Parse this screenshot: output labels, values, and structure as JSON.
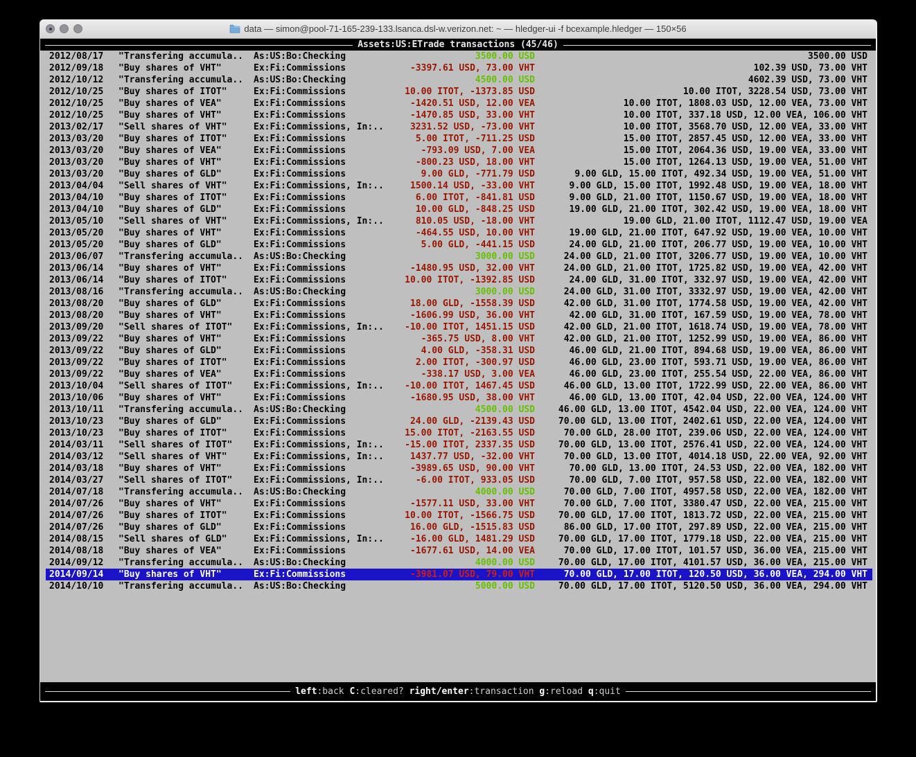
{
  "window": {
    "title": "data — simon@pool-71-165-239-133.lsanca.dsl-w.verizon.net: ~ — hledger-ui -f bcexample.hledger — 150×56",
    "folder_icon_color": "#74a9d8",
    "buttons": [
      "close",
      "minimize",
      "zoom"
    ]
  },
  "colors": {
    "terminal_bg": "#bfbfbf",
    "green": "#66c000",
    "red": "#991500",
    "selected_bg": "#1b13c8",
    "selected_red": "#cc2012"
  },
  "header": {
    "title_bold": "Assets:US:ETrade",
    "title_rest": " transactions (45/46)"
  },
  "footer": {
    "parts": [
      {
        "key": "left",
        "label": ":back"
      },
      {
        "key": "C",
        "label": ":cleared?"
      },
      {
        "key": "right/enter",
        "label": ":transaction"
      },
      {
        "key": "g",
        "label": ":reload"
      },
      {
        "key": "q",
        "label": ":quit"
      }
    ]
  },
  "register": {
    "columns": [
      "date",
      "description",
      "other accounts",
      "change",
      "balance"
    ],
    "rows": [
      {
        "date": "2012/08/17",
        "desc": "\"Transfering accumula..",
        "acct": "As:US:Bo:Checking",
        "amt": "3500.00 USD",
        "amt_color": "green",
        "bal": "3500.00 USD",
        "selected": false
      },
      {
        "date": "2012/09/18",
        "desc": "\"Buy shares of VHT\"",
        "acct": "Ex:Fi:Commissions",
        "amt": "-3397.61 USD, 73.00 VHT",
        "amt_color": "red",
        "bal": "102.39 USD, 73.00 VHT",
        "selected": false
      },
      {
        "date": "2012/10/12",
        "desc": "\"Transfering accumula..",
        "acct": "As:US:Bo:Checking",
        "amt": "4500.00 USD",
        "amt_color": "green",
        "bal": "4602.39 USD, 73.00 VHT",
        "selected": false
      },
      {
        "date": "2012/10/25",
        "desc": "\"Buy shares of ITOT\"",
        "acct": "Ex:Fi:Commissions",
        "amt": "10.00 ITOT, -1373.85 USD",
        "amt_color": "red",
        "bal": "10.00 ITOT, 3228.54 USD, 73.00 VHT",
        "selected": false
      },
      {
        "date": "2012/10/25",
        "desc": "\"Buy shares of VEA\"",
        "acct": "Ex:Fi:Commissions",
        "amt": "-1420.51 USD, 12.00 VEA",
        "amt_color": "red",
        "bal": "10.00 ITOT, 1808.03 USD, 12.00 VEA, 73.00 VHT",
        "selected": false
      },
      {
        "date": "2012/10/25",
        "desc": "\"Buy shares of VHT\"",
        "acct": "Ex:Fi:Commissions",
        "amt": "-1470.85 USD, 33.00 VHT",
        "amt_color": "red",
        "bal": "10.00 ITOT, 337.18 USD, 12.00 VEA, 106.00 VHT",
        "selected": false
      },
      {
        "date": "2013/02/17",
        "desc": "\"Sell shares of VHT\"",
        "acct": "Ex:Fi:Commissions, In:..",
        "amt": "3231.52 USD, -73.00 VHT",
        "amt_color": "red",
        "bal": "10.00 ITOT, 3568.70 USD, 12.00 VEA, 33.00 VHT",
        "selected": false
      },
      {
        "date": "2013/03/20",
        "desc": "\"Buy shares of ITOT\"",
        "acct": "Ex:Fi:Commissions",
        "amt": "5.00 ITOT, -711.25 USD",
        "amt_color": "red",
        "bal": "15.00 ITOT, 2857.45 USD, 12.00 VEA, 33.00 VHT",
        "selected": false
      },
      {
        "date": "2013/03/20",
        "desc": "\"Buy shares of VEA\"",
        "acct": "Ex:Fi:Commissions",
        "amt": "-793.09 USD, 7.00 VEA",
        "amt_color": "red",
        "bal": "15.00 ITOT, 2064.36 USD, 19.00 VEA, 33.00 VHT",
        "selected": false
      },
      {
        "date": "2013/03/20",
        "desc": "\"Buy shares of VHT\"",
        "acct": "Ex:Fi:Commissions",
        "amt": "-800.23 USD, 18.00 VHT",
        "amt_color": "red",
        "bal": "15.00 ITOT, 1264.13 USD, 19.00 VEA, 51.00 VHT",
        "selected": false
      },
      {
        "date": "2013/03/20",
        "desc": "\"Buy shares of GLD\"",
        "acct": "Ex:Fi:Commissions",
        "amt": "9.00 GLD, -771.79 USD",
        "amt_color": "red",
        "bal": "9.00 GLD, 15.00 ITOT, 492.34 USD, 19.00 VEA, 51.00 VHT",
        "selected": false
      },
      {
        "date": "2013/04/04",
        "desc": "\"Sell shares of VHT\"",
        "acct": "Ex:Fi:Commissions, In:..",
        "amt": "1500.14 USD, -33.00 VHT",
        "amt_color": "red",
        "bal": "9.00 GLD, 15.00 ITOT, 1992.48 USD, 19.00 VEA, 18.00 VHT",
        "selected": false
      },
      {
        "date": "2013/04/10",
        "desc": "\"Buy shares of ITOT\"",
        "acct": "Ex:Fi:Commissions",
        "amt": "6.00 ITOT, -841.81 USD",
        "amt_color": "red",
        "bal": "9.00 GLD, 21.00 ITOT, 1150.67 USD, 19.00 VEA, 18.00 VHT",
        "selected": false
      },
      {
        "date": "2013/04/10",
        "desc": "\"Buy shares of GLD\"",
        "acct": "Ex:Fi:Commissions",
        "amt": "10.00 GLD, -848.25 USD",
        "amt_color": "red",
        "bal": "19.00 GLD, 21.00 ITOT, 302.42 USD, 19.00 VEA, 18.00 VHT",
        "selected": false
      },
      {
        "date": "2013/05/10",
        "desc": "\"Sell shares of VHT\"",
        "acct": "Ex:Fi:Commissions, In:..",
        "amt": "810.05 USD, -18.00 VHT",
        "amt_color": "red",
        "bal": "19.00 GLD, 21.00 ITOT, 1112.47 USD, 19.00 VEA",
        "selected": false
      },
      {
        "date": "2013/05/20",
        "desc": "\"Buy shares of VHT\"",
        "acct": "Ex:Fi:Commissions",
        "amt": "-464.55 USD, 10.00 VHT",
        "amt_color": "red",
        "bal": "19.00 GLD, 21.00 ITOT, 647.92 USD, 19.00 VEA, 10.00 VHT",
        "selected": false
      },
      {
        "date": "2013/05/20",
        "desc": "\"Buy shares of GLD\"",
        "acct": "Ex:Fi:Commissions",
        "amt": "5.00 GLD, -441.15 USD",
        "amt_color": "red",
        "bal": "24.00 GLD, 21.00 ITOT, 206.77 USD, 19.00 VEA, 10.00 VHT",
        "selected": false
      },
      {
        "date": "2013/06/07",
        "desc": "\"Transfering accumula..",
        "acct": "As:US:Bo:Checking",
        "amt": "3000.00 USD",
        "amt_color": "green",
        "bal": "24.00 GLD, 21.00 ITOT, 3206.77 USD, 19.00 VEA, 10.00 VHT",
        "selected": false
      },
      {
        "date": "2013/06/14",
        "desc": "\"Buy shares of VHT\"",
        "acct": "Ex:Fi:Commissions",
        "amt": "-1480.95 USD, 32.00 VHT",
        "amt_color": "red",
        "bal": "24.00 GLD, 21.00 ITOT, 1725.82 USD, 19.00 VEA, 42.00 VHT",
        "selected": false
      },
      {
        "date": "2013/06/14",
        "desc": "\"Buy shares of ITOT\"",
        "acct": "Ex:Fi:Commissions",
        "amt": "10.00 ITOT, -1392.85 USD",
        "amt_color": "red",
        "bal": "24.00 GLD, 31.00 ITOT, 332.97 USD, 19.00 VEA, 42.00 VHT",
        "selected": false
      },
      {
        "date": "2013/08/16",
        "desc": "\"Transfering accumula..",
        "acct": "As:US:Bo:Checking",
        "amt": "3000.00 USD",
        "amt_color": "green",
        "bal": "24.00 GLD, 31.00 ITOT, 3332.97 USD, 19.00 VEA, 42.00 VHT",
        "selected": false
      },
      {
        "date": "2013/08/20",
        "desc": "\"Buy shares of GLD\"",
        "acct": "Ex:Fi:Commissions",
        "amt": "18.00 GLD, -1558.39 USD",
        "amt_color": "red",
        "bal": "42.00 GLD, 31.00 ITOT, 1774.58 USD, 19.00 VEA, 42.00 VHT",
        "selected": false
      },
      {
        "date": "2013/08/20",
        "desc": "\"Buy shares of VHT\"",
        "acct": "Ex:Fi:Commissions",
        "amt": "-1606.99 USD, 36.00 VHT",
        "amt_color": "red",
        "bal": "42.00 GLD, 31.00 ITOT, 167.59 USD, 19.00 VEA, 78.00 VHT",
        "selected": false
      },
      {
        "date": "2013/09/20",
        "desc": "\"Sell shares of ITOT\"",
        "acct": "Ex:Fi:Commissions, In:..",
        "amt": "-10.00 ITOT, 1451.15 USD",
        "amt_color": "red",
        "bal": "42.00 GLD, 21.00 ITOT, 1618.74 USD, 19.00 VEA, 78.00 VHT",
        "selected": false
      },
      {
        "date": "2013/09/22",
        "desc": "\"Buy shares of VHT\"",
        "acct": "Ex:Fi:Commissions",
        "amt": "-365.75 USD, 8.00 VHT",
        "amt_color": "red",
        "bal": "42.00 GLD, 21.00 ITOT, 1252.99 USD, 19.00 VEA, 86.00 VHT",
        "selected": false
      },
      {
        "date": "2013/09/22",
        "desc": "\"Buy shares of GLD\"",
        "acct": "Ex:Fi:Commissions",
        "amt": "4.00 GLD, -358.31 USD",
        "amt_color": "red",
        "bal": "46.00 GLD, 21.00 ITOT, 894.68 USD, 19.00 VEA, 86.00 VHT",
        "selected": false
      },
      {
        "date": "2013/09/22",
        "desc": "\"Buy shares of ITOT\"",
        "acct": "Ex:Fi:Commissions",
        "amt": "2.00 ITOT, -300.97 USD",
        "amt_color": "red",
        "bal": "46.00 GLD, 23.00 ITOT, 593.71 USD, 19.00 VEA, 86.00 VHT",
        "selected": false
      },
      {
        "date": "2013/09/22",
        "desc": "\"Buy shares of VEA\"",
        "acct": "Ex:Fi:Commissions",
        "amt": "-338.17 USD, 3.00 VEA",
        "amt_color": "red",
        "bal": "46.00 GLD, 23.00 ITOT, 255.54 USD, 22.00 VEA, 86.00 VHT",
        "selected": false
      },
      {
        "date": "2013/10/04",
        "desc": "\"Sell shares of ITOT\"",
        "acct": "Ex:Fi:Commissions, In:..",
        "amt": "-10.00 ITOT, 1467.45 USD",
        "amt_color": "red",
        "bal": "46.00 GLD, 13.00 ITOT, 1722.99 USD, 22.00 VEA, 86.00 VHT",
        "selected": false
      },
      {
        "date": "2013/10/06",
        "desc": "\"Buy shares of VHT\"",
        "acct": "Ex:Fi:Commissions",
        "amt": "-1680.95 USD, 38.00 VHT",
        "amt_color": "red",
        "bal": "46.00 GLD, 13.00 ITOT, 42.04 USD, 22.00 VEA, 124.00 VHT",
        "selected": false
      },
      {
        "date": "2013/10/11",
        "desc": "\"Transfering accumula..",
        "acct": "As:US:Bo:Checking",
        "amt": "4500.00 USD",
        "amt_color": "green",
        "bal": "46.00 GLD, 13.00 ITOT, 4542.04 USD, 22.00 VEA, 124.00 VHT",
        "selected": false
      },
      {
        "date": "2013/10/23",
        "desc": "\"Buy shares of GLD\"",
        "acct": "Ex:Fi:Commissions",
        "amt": "24.00 GLD, -2139.43 USD",
        "amt_color": "red",
        "bal": "70.00 GLD, 13.00 ITOT, 2402.61 USD, 22.00 VEA, 124.00 VHT",
        "selected": false
      },
      {
        "date": "2013/10/23",
        "desc": "\"Buy shares of ITOT\"",
        "acct": "Ex:Fi:Commissions",
        "amt": "15.00 ITOT, -2163.55 USD",
        "amt_color": "red",
        "bal": "70.00 GLD, 28.00 ITOT, 239.06 USD, 22.00 VEA, 124.00 VHT",
        "selected": false
      },
      {
        "date": "2014/03/11",
        "desc": "\"Sell shares of ITOT\"",
        "acct": "Ex:Fi:Commissions, In:..",
        "amt": "-15.00 ITOT, 2337.35 USD",
        "amt_color": "red",
        "bal": "70.00 GLD, 13.00 ITOT, 2576.41 USD, 22.00 VEA, 124.00 VHT",
        "selected": false
      },
      {
        "date": "2014/03/12",
        "desc": "\"Sell shares of VHT\"",
        "acct": "Ex:Fi:Commissions, In:..",
        "amt": "1437.77 USD, -32.00 VHT",
        "amt_color": "red",
        "bal": "70.00 GLD, 13.00 ITOT, 4014.18 USD, 22.00 VEA, 92.00 VHT",
        "selected": false
      },
      {
        "date": "2014/03/18",
        "desc": "\"Buy shares of VHT\"",
        "acct": "Ex:Fi:Commissions",
        "amt": "-3989.65 USD, 90.00 VHT",
        "amt_color": "red",
        "bal": "70.00 GLD, 13.00 ITOT, 24.53 USD, 22.00 VEA, 182.00 VHT",
        "selected": false
      },
      {
        "date": "2014/03/27",
        "desc": "\"Sell shares of ITOT\"",
        "acct": "Ex:Fi:Commissions, In:..",
        "amt": "-6.00 ITOT, 933.05 USD",
        "amt_color": "red",
        "bal": "70.00 GLD, 7.00 ITOT, 957.58 USD, 22.00 VEA, 182.00 VHT",
        "selected": false
      },
      {
        "date": "2014/07/18",
        "desc": "\"Transfering accumula..",
        "acct": "As:US:Bo:Checking",
        "amt": "4000.00 USD",
        "amt_color": "green",
        "bal": "70.00 GLD, 7.00 ITOT, 4957.58 USD, 22.00 VEA, 182.00 VHT",
        "selected": false
      },
      {
        "date": "2014/07/26",
        "desc": "\"Buy shares of VHT\"",
        "acct": "Ex:Fi:Commissions",
        "amt": "-1577.11 USD, 33.00 VHT",
        "amt_color": "red",
        "bal": "70.00 GLD, 7.00 ITOT, 3380.47 USD, 22.00 VEA, 215.00 VHT",
        "selected": false
      },
      {
        "date": "2014/07/26",
        "desc": "\"Buy shares of ITOT\"",
        "acct": "Ex:Fi:Commissions",
        "amt": "10.00 ITOT, -1566.75 USD",
        "amt_color": "red",
        "bal": "70.00 GLD, 17.00 ITOT, 1813.72 USD, 22.00 VEA, 215.00 VHT",
        "selected": false
      },
      {
        "date": "2014/07/26",
        "desc": "\"Buy shares of GLD\"",
        "acct": "Ex:Fi:Commissions",
        "amt": "16.00 GLD, -1515.83 USD",
        "amt_color": "red",
        "bal": "86.00 GLD, 17.00 ITOT, 297.89 USD, 22.00 VEA, 215.00 VHT",
        "selected": false
      },
      {
        "date": "2014/08/15",
        "desc": "\"Sell shares of GLD\"",
        "acct": "Ex:Fi:Commissions, In:..",
        "amt": "-16.00 GLD, 1481.29 USD",
        "amt_color": "red",
        "bal": "70.00 GLD, 17.00 ITOT, 1779.18 USD, 22.00 VEA, 215.00 VHT",
        "selected": false
      },
      {
        "date": "2014/08/18",
        "desc": "\"Buy shares of VEA\"",
        "acct": "Ex:Fi:Commissions",
        "amt": "-1677.61 USD, 14.00 VEA",
        "amt_color": "red",
        "bal": "70.00 GLD, 17.00 ITOT, 101.57 USD, 36.00 VEA, 215.00 VHT",
        "selected": false
      },
      {
        "date": "2014/09/12",
        "desc": "\"Transfering accumula..",
        "acct": "As:US:Bo:Checking",
        "amt": "4000.00 USD",
        "amt_color": "green",
        "bal": "70.00 GLD, 17.00 ITOT, 4101.57 USD, 36.00 VEA, 215.00 VHT",
        "selected": false
      },
      {
        "date": "2014/09/14",
        "desc": "\"Buy shares of VHT\"",
        "acct": "Ex:Fi:Commissions",
        "amt": "-3981.07 USD, 79.00 VHT",
        "amt_color": "red",
        "bal": "70.00 GLD, 17.00 ITOT, 120.50 USD, 36.00 VEA, 294.00 VHT",
        "selected": true
      },
      {
        "date": "2014/10/10",
        "desc": "\"Transfering accumula..",
        "acct": "As:US:Bo:Checking",
        "amt": "5000.00 USD",
        "amt_color": "green",
        "bal": "70.00 GLD, 17.00 ITOT, 5120.50 USD, 36.00 VEA, 294.00 VHT",
        "selected": false
      }
    ]
  }
}
